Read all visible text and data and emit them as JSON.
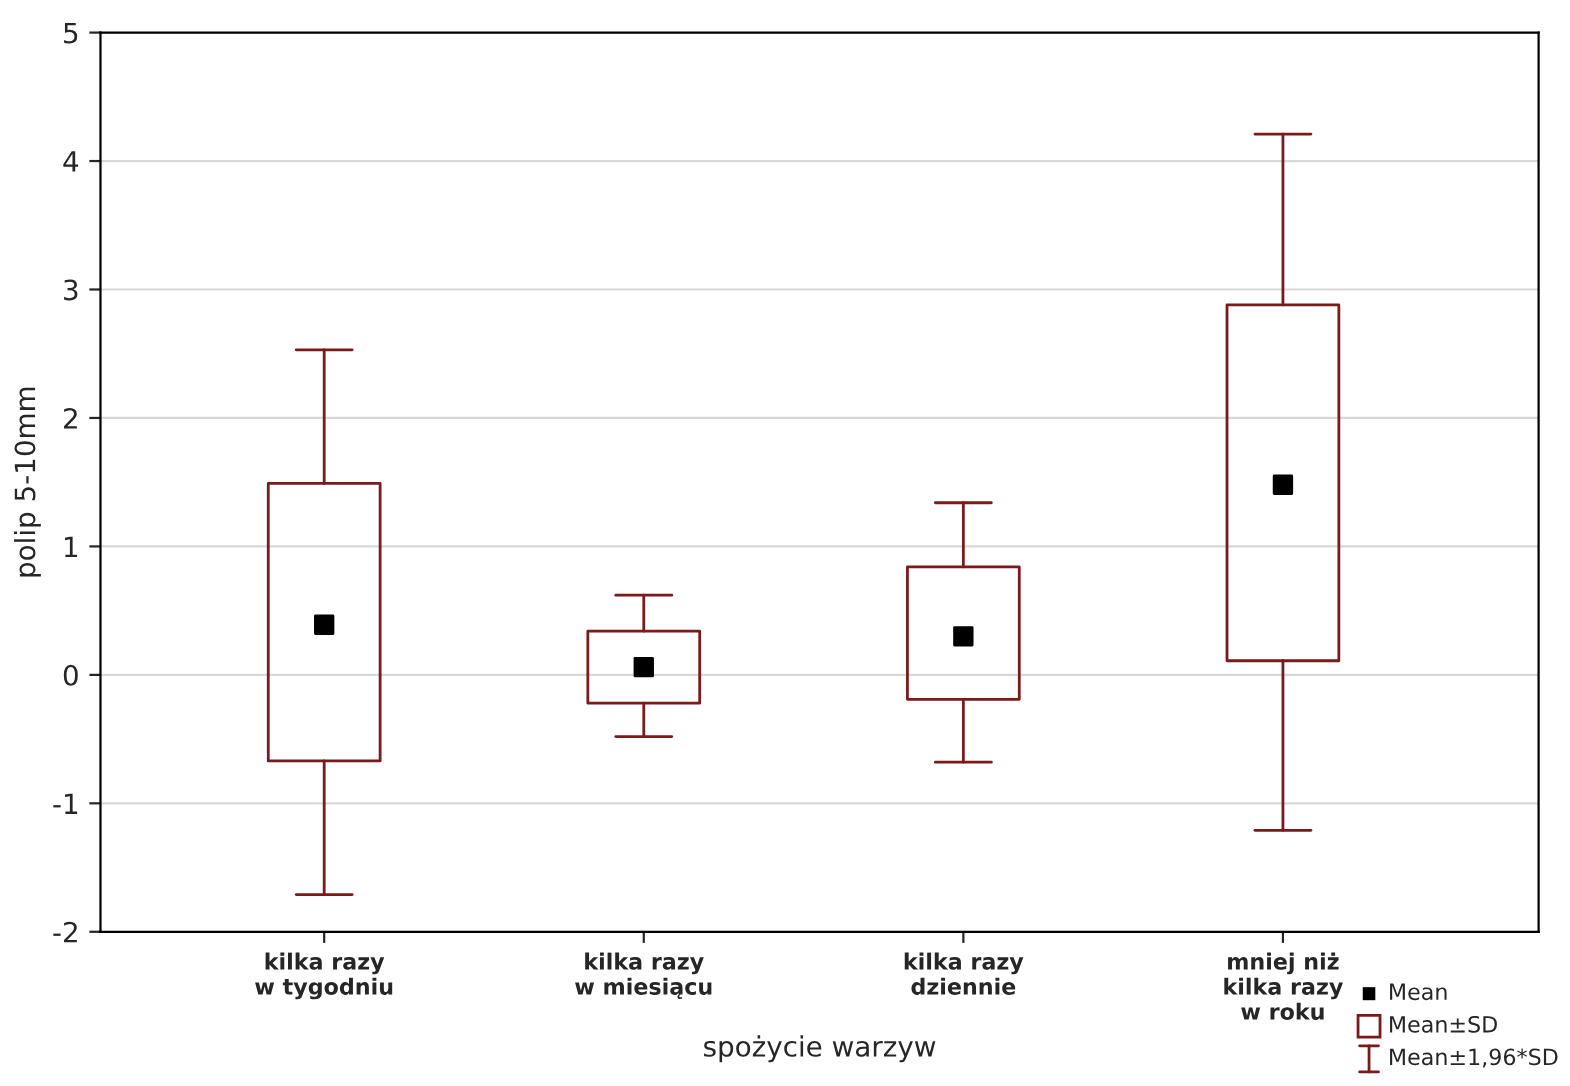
{
  "chart_data": {
    "type": "box",
    "xlabel": "spożycie warzyw",
    "ylabel": "polip 5-10mm",
    "categories": [
      "kilka razy\nw tygodniu",
      "kilka razy\nw miesiącu",
      "kilka razy\ndziennie",
      "mniej niż\nkilka razy\nw roku"
    ],
    "boxes": [
      {
        "low": -1.71,
        "q1": -0.67,
        "median": 0.39,
        "q3": 1.49,
        "high": 2.53
      },
      {
        "low": -0.48,
        "q1": -0.22,
        "median": 0.06,
        "q3": 0.34,
        "high": 0.62
      },
      {
        "low": -0.68,
        "q1": -0.19,
        "median": 0.3,
        "q3": 0.84,
        "high": 1.34
      },
      {
        "low": -1.21,
        "q1": 0.11,
        "median": 1.48,
        "q3": 2.88,
        "high": 4.21
      }
    ],
    "color": "#7a1a1a",
    "ylim": [
      -2,
      5
    ],
    "yticks": [
      -2,
      -1,
      0,
      1,
      2,
      3,
      4,
      5
    ],
    "grid": "y",
    "annotations": [
      "Mean",
      "Mean±SD",
      "Mean±1,96*SD"
    ]
  }
}
